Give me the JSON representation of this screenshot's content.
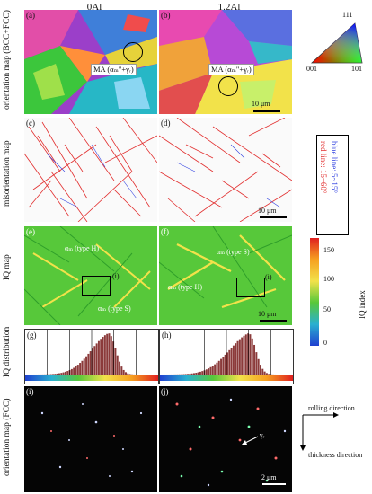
{
  "columns": {
    "left": "0Al",
    "right": "1.2Al"
  },
  "row_labels": {
    "orientation_bcc_fcc": "orientation map (BCC+FCC)",
    "misorientation": "misorientation map",
    "iq": "IQ map",
    "iq_dist": "IQ distribution",
    "orientation_fcc": "orientation map (FCC)"
  },
  "panels": {
    "a": "(a)",
    "b": "(b)",
    "c": "(c)",
    "d": "(d)",
    "e": "(e)",
    "f": "(f)",
    "g": "(g)",
    "h": "(h)",
    "i": "(i)",
    "j": "(j)"
  },
  "ma_label": "MA (αₘ\"+γᵣ)",
  "scalebars": {
    "a": "10 μm",
    "d": "10 μm",
    "f": "10 μm",
    "j": "2 μm"
  },
  "inverse_pole_figure": {
    "top": "111",
    "left": "001",
    "right": "101"
  },
  "misorientation_legend": {
    "blue": "blue line: 5~15°",
    "red": "red line: 15~60°"
  },
  "iq_colorbar": {
    "ticks": [
      "150",
      "100",
      "50",
      "0"
    ],
    "label": "IQ index"
  },
  "iq_annotations": {
    "e_type_h": "αₘ (type H)",
    "e_type_s": "αₘ (type S)",
    "e_i": "(i)",
    "f_type_s": "αₘ (type S)",
    "f_type_h": "αₘ (type H)",
    "f_i": "(i)"
  },
  "axes": {
    "rolling": "rolling direction",
    "thickness": "thickness direction"
  },
  "gamma_label": "γᵣ",
  "colors": {
    "bcc_fill": "#9b3fc9",
    "iq_green": "#57c83a",
    "hist_bar": "#8b3a3a",
    "red_line": "#e23030",
    "blue_line": "#3040e0"
  }
}
